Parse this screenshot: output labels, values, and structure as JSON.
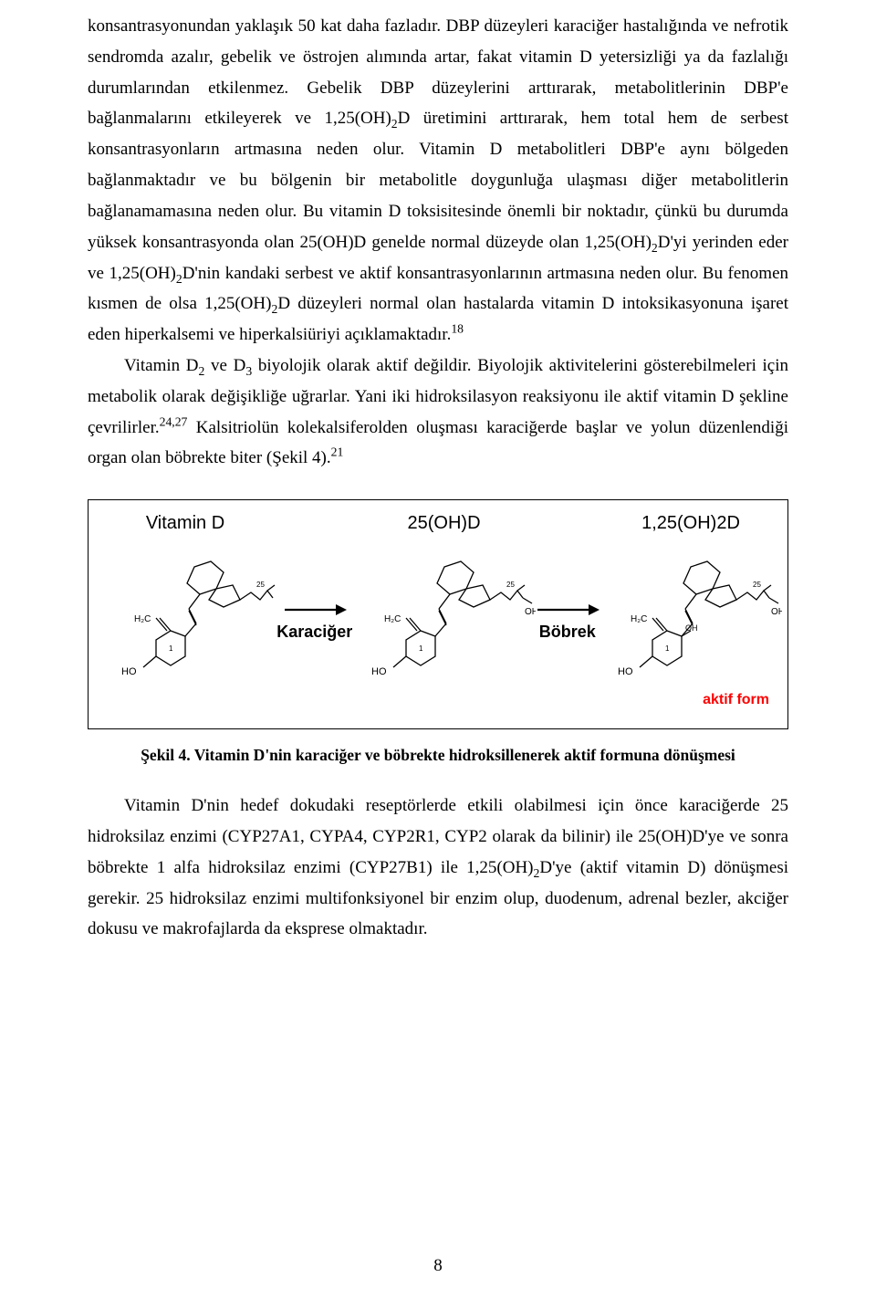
{
  "para1_html": "konsantrasyonundan yaklaşık 50 kat daha fazladır. DBP düzeyleri karaciğer hastalığında ve nefrotik sendromda azalır, gebelik ve östrojen alımında artar, fakat vitamin D yetersizliği ya da fazlalığı durumlarından etkilenmez. Gebelik DBP düzeylerini arttırarak, metabolitlerinin DBP'e bağlanmalarını etkileyerek ve 1,25(OH)<sub>2</sub>D üretimini arttırarak, hem total hem de serbest konsantrasyonların artmasına neden olur. Vitamin D metabolitleri DBP'e aynı bölgeden bağlanmaktadır ve bu bölgenin bir metabolitle doygunluğa ulaşması diğer metabolitlerin bağlanamamasına neden olur. Bu vitamin D toksisitesinde önemli bir noktadır, çünkü bu durumda yüksek konsantrasyonda olan 25(OH)D genelde normal düzeyde olan 1,25(OH)<sub>2</sub>D'yi yerinden eder ve 1,25(OH)<sub>2</sub>D'nin kandaki serbest ve aktif konsantrasyonlarının artmasına neden olur. Bu fenomen kısmen de olsa 1,25(OH)<sub>2</sub>D düzeyleri normal olan hastalarda vitamin D intoksikasyonuna işaret eden hiperkalsemi ve hiperkalsiüriyi açıklamaktadır.<sup>18</sup>",
  "para2_html": "Vitamin D<sub>2</sub> ve D<sub>3</sub> biyolojik olarak aktif değildir. Biyolojik aktivitelerini gösterebilmeleri için metabolik olarak değişikliğe uğrarlar. Yani iki hidroksilasyon reaksiyonu ile aktif vitamin D şekline çevrilirler.<sup>24,27</sup> Kalsitriolün kolekalsiferolden oluşması karaciğerde başlar ve yolun düzenlendiği organ olan böbrekte biter (Şekil 4).<sup>21</sup>",
  "figure": {
    "mol1_title": "Vitamin D",
    "mol2_title": "25(OH)D",
    "mol3_title": "1,25(OH)2D",
    "arrow1_label": "Karaciğer",
    "arrow2_label": "Böbrek",
    "aktif_label": "aktif form",
    "colors": {
      "stroke": "#000000",
      "aktif": "#ff0000",
      "oh_side": "#000000"
    },
    "annot": {
      "h2c": "H₂C",
      "ho": "HO",
      "oh": "OH",
      "num25": "25"
    }
  },
  "caption": "Şekil 4. Vitamin D'nin karaciğer ve böbrekte hidroksillenerek aktif formuna dönüşmesi",
  "para3_html": "Vitamin D'nin hedef dokudaki reseptörlerde etkili olabilmesi için önce karaciğerde 25 hidroksilaz enzimi (CYP27A1, CYPA4, CYP2R1, CYP2 olarak da bilinir) ile 25(OH)D'ye ve sonra böbrekte 1 alfa hidroksilaz enzimi (CYP27B1) ile 1,25(OH)<sub>2</sub>D'ye (aktif vitamin D) dönüşmesi gerekir. 25 hidroksilaz enzimi multifonksiyonel bir enzim olup, duodenum, adrenal bezler, akciğer dokusu ve makrofajlarda da eksprese olmaktadır.",
  "page_number": "8"
}
